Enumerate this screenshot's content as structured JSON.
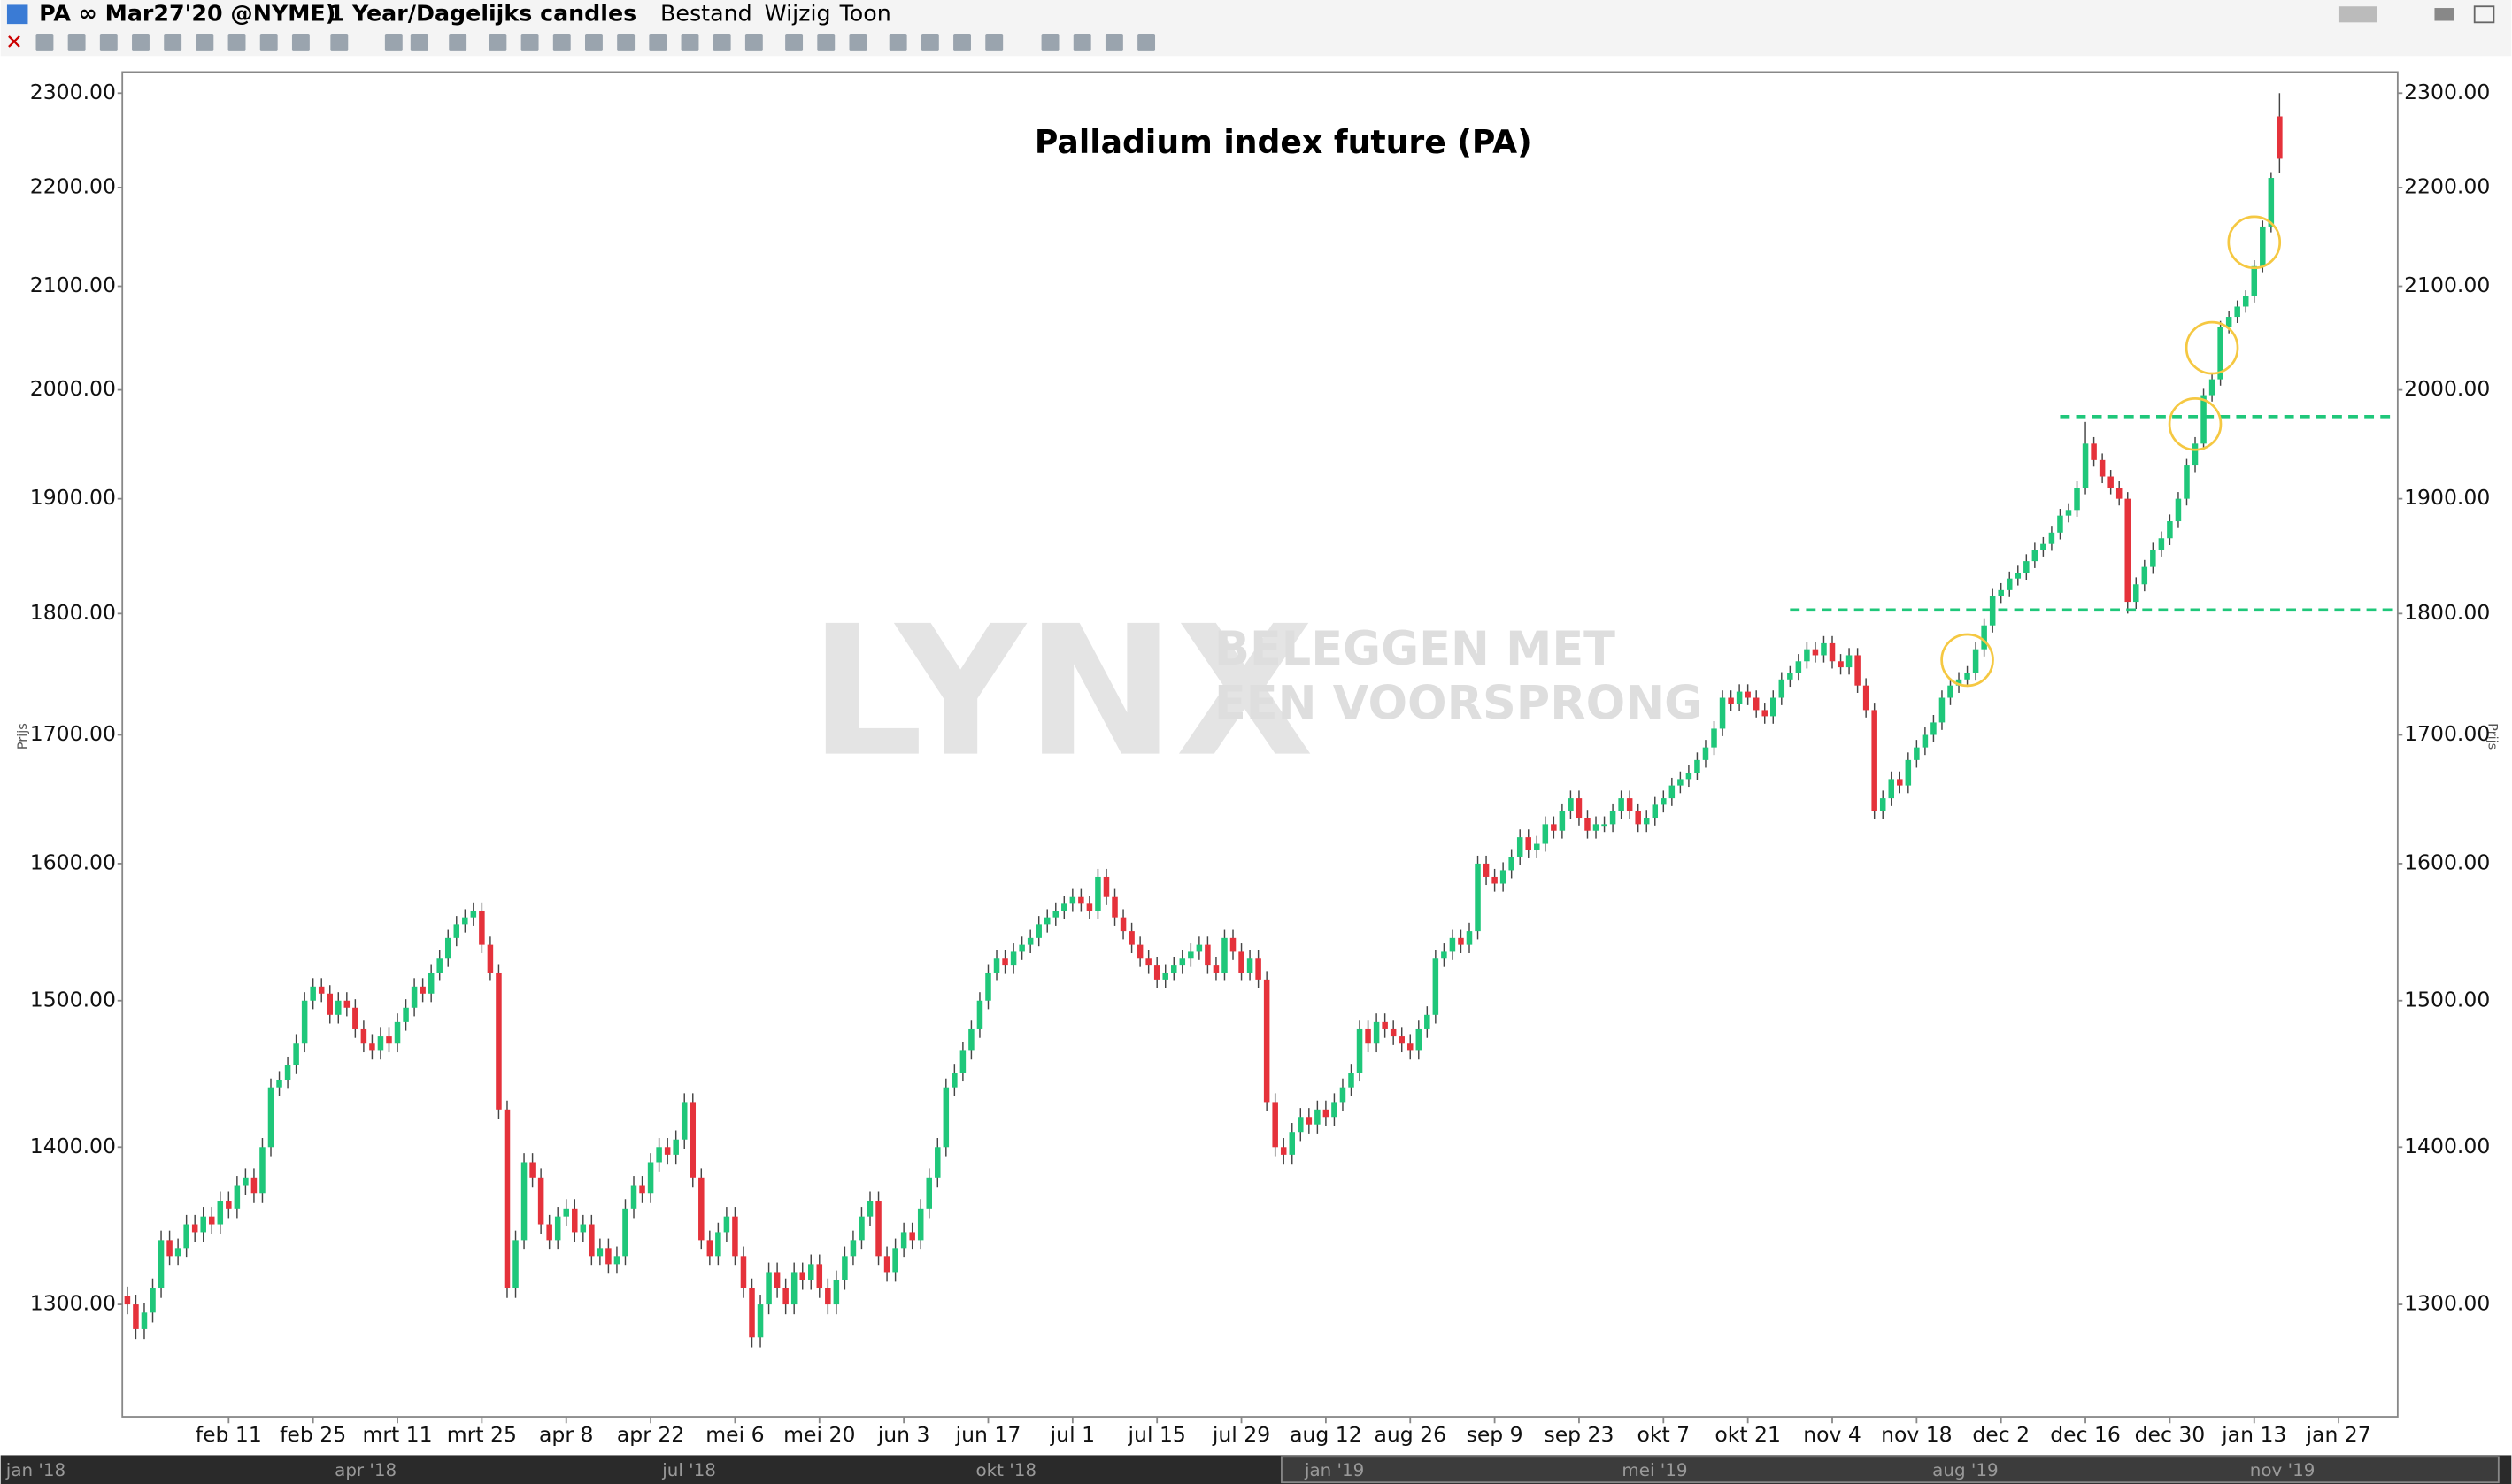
{
  "toolbar": {
    "symbol": "PA ∞ Mar27'20 @NYME)",
    "period": "1 Year/Dagelijks candles",
    "menu": [
      "Bestand",
      "Wijzig",
      "Toon"
    ]
  },
  "watermark": {
    "logo": "LYNX",
    "tagline": [
      "BELEGGEN MET",
      "EEN VOORSPRONG"
    ]
  },
  "navigator": {
    "labels": [
      "jan '18",
      "apr '18",
      "jul '18",
      "okt '18",
      "jan '19",
      "mei '19",
      "aug '19",
      "nov '19"
    ]
  },
  "chart_data": {
    "type": "candlestick",
    "title": "Palladium index future (PA)",
    "y_label": "Prijs",
    "log_scale": true,
    "grid": false,
    "up_color": "#1fc77a",
    "down_color": "#e5323b",
    "xlim": [
      -0.6,
      269
    ],
    "xticks": [
      {
        "value": 12,
        "label": "feb 11"
      },
      {
        "value": 22,
        "label": "feb 25"
      },
      {
        "value": 32,
        "label": "mrt 11"
      },
      {
        "value": 42,
        "label": "mrt 25"
      },
      {
        "value": 52,
        "label": "apr 8"
      },
      {
        "value": 62,
        "label": "apr 22"
      },
      {
        "value": 72,
        "label": "mei 6"
      },
      {
        "value": 82,
        "label": "mei 20"
      },
      {
        "value": 92,
        "label": "jun 3"
      },
      {
        "value": 102,
        "label": "jun 17"
      },
      {
        "value": 112,
        "label": "jul 1"
      },
      {
        "value": 122,
        "label": "jul 15"
      },
      {
        "value": 132,
        "label": "jul 29"
      },
      {
        "value": 142,
        "label": "aug 12"
      },
      {
        "value": 152,
        "label": "aug 26"
      },
      {
        "value": 162,
        "label": "sep 9"
      },
      {
        "value": 172,
        "label": "sep 23"
      },
      {
        "value": 182,
        "label": "okt 7"
      },
      {
        "value": 192,
        "label": "okt 21"
      },
      {
        "value": 202,
        "label": "nov 4"
      },
      {
        "value": 212,
        "label": "nov 18"
      },
      {
        "value": 222,
        "label": "dec 2"
      },
      {
        "value": 232,
        "label": "dec 16"
      },
      {
        "value": 242,
        "label": "dec 30"
      },
      {
        "value": 252,
        "label": "jan 13"
      },
      {
        "value": 262,
        "label": "jan 27"
      }
    ],
    "ylim": [
      1233,
      2323
    ],
    "yticks": [
      {
        "value": 1300,
        "label": "1300.00"
      },
      {
        "value": 1400,
        "label": "1400.00"
      },
      {
        "value": 1500,
        "label": "1500.00"
      },
      {
        "value": 1600,
        "label": "1600.00"
      },
      {
        "value": 1700,
        "label": "1700.00"
      },
      {
        "value": 1800,
        "label": "1800.00"
      },
      {
        "value": 1900,
        "label": "1900.00"
      },
      {
        "value": 2000,
        "label": "2000.00"
      },
      {
        "value": 2100,
        "label": "2100.00"
      },
      {
        "value": 2200,
        "label": "2200.00"
      },
      {
        "value": 2300,
        "label": "2300.00"
      }
    ],
    "open": [
      1305,
      1300,
      1285,
      1295,
      1310,
      1340,
      1330,
      1335,
      1350,
      1345,
      1355,
      1350,
      1365,
      1360,
      1375,
      1380,
      1370,
      1400,
      1440,
      1445,
      1455,
      1470,
      1500,
      1510,
      1505,
      1490,
      1500,
      1495,
      1480,
      1470,
      1465,
      1475,
      1470,
      1485,
      1495,
      1510,
      1505,
      1520,
      1530,
      1545,
      1555,
      1560,
      1565,
      1540,
      1520,
      1425,
      1310,
      1340,
      1390,
      1380,
      1350,
      1340,
      1355,
      1360,
      1345,
      1350,
      1330,
      1335,
      1325,
      1330,
      1360,
      1375,
      1370,
      1390,
      1400,
      1395,
      1405,
      1430,
      1380,
      1340,
      1330,
      1345,
      1355,
      1330,
      1310,
      1280,
      1300,
      1320,
      1310,
      1300,
      1320,
      1315,
      1325,
      1310,
      1300,
      1315,
      1330,
      1340,
      1355,
      1365,
      1330,
      1320,
      1335,
      1345,
      1340,
      1360,
      1380,
      1400,
      1440,
      1450,
      1465,
      1480,
      1500,
      1520,
      1530,
      1525,
      1535,
      1540,
      1545,
      1555,
      1560,
      1565,
      1570,
      1575,
      1570,
      1565,
      1590,
      1575,
      1560,
      1550,
      1540,
      1530,
      1525,
      1515,
      1520,
      1525,
      1530,
      1535,
      1540,
      1525,
      1520,
      1545,
      1535,
      1520,
      1530,
      1515,
      1430,
      1400,
      1395,
      1410,
      1420,
      1415,
      1425,
      1420,
      1430,
      1440,
      1450,
      1480,
      1470,
      1485,
      1480,
      1475,
      1470,
      1465,
      1480,
      1490,
      1530,
      1535,
      1545,
      1540,
      1550,
      1600,
      1590,
      1585,
      1595,
      1605,
      1620,
      1610,
      1615,
      1630,
      1625,
      1640,
      1650,
      1635,
      1625,
      1630,
      1630,
      1640,
      1650,
      1640,
      1630,
      1635,
      1645,
      1650,
      1660,
      1665,
      1670,
      1680,
      1690,
      1705,
      1730,
      1725,
      1735,
      1730,
      1720,
      1715,
      1730,
      1745,
      1750,
      1760,
      1770,
      1765,
      1775,
      1760,
      1755,
      1765,
      1740,
      1720,
      1640,
      1650,
      1665,
      1660,
      1680,
      1690,
      1700,
      1710,
      1730,
      1740,
      1745,
      1750,
      1770,
      1790,
      1815,
      1820,
      1830,
      1835,
      1845,
      1855,
      1860,
      1870,
      1885,
      1890,
      1910,
      1950,
      1935,
      1920,
      1910,
      1900,
      1810,
      1825,
      1840,
      1855,
      1865,
      1880,
      1900,
      1930,
      1950,
      1995,
      2010,
      2060,
      2070,
      2080,
      2090,
      2120,
      2160,
      2275
    ],
    "high": [
      1311,
      1306,
      1301,
      1316,
      1346,
      1346,
      1341,
      1356,
      1356,
      1361,
      1361,
      1371,
      1371,
      1381,
      1386,
      1386,
      1406,
      1446,
      1451,
      1461,
      1476,
      1506,
      1516,
      1516,
      1511,
      1506,
      1506,
      1501,
      1486,
      1476,
      1481,
      1481,
      1491,
      1501,
      1516,
      1516,
      1526,
      1536,
      1551,
      1561,
      1566,
      1571,
      1571,
      1546,
      1526,
      1431,
      1346,
      1396,
      1396,
      1386,
      1356,
      1361,
      1366,
      1366,
      1356,
      1356,
      1341,
      1341,
      1336,
      1366,
      1381,
      1381,
      1396,
      1406,
      1406,
      1411,
      1436,
      1436,
      1386,
      1346,
      1351,
      1361,
      1361,
      1336,
      1316,
      1306,
      1326,
      1326,
      1316,
      1326,
      1326,
      1331,
      1331,
      1316,
      1321,
      1336,
      1346,
      1361,
      1371,
      1371,
      1336,
      1341,
      1351,
      1351,
      1366,
      1386,
      1406,
      1446,
      1456,
      1471,
      1486,
      1506,
      1526,
      1536,
      1536,
      1541,
      1546,
      1551,
      1561,
      1566,
      1571,
      1576,
      1581,
      1581,
      1576,
      1596,
      1596,
      1581,
      1566,
      1556,
      1546,
      1536,
      1531,
      1526,
      1531,
      1536,
      1541,
      1546,
      1546,
      1531,
      1551,
      1551,
      1541,
      1536,
      1536,
      1521,
      1436,
      1406,
      1416,
      1426,
      1426,
      1431,
      1431,
      1436,
      1446,
      1456,
      1486,
      1486,
      1491,
      1491,
      1486,
      1481,
      1476,
      1486,
      1496,
      1536,
      1541,
      1551,
      1551,
      1556,
      1606,
      1606,
      1596,
      1601,
      1611,
      1626,
      1626,
      1621,
      1636,
      1636,
      1646,
      1656,
      1656,
      1641,
      1636,
      1636,
      1646,
      1656,
      1656,
      1646,
      1641,
      1651,
      1656,
      1666,
      1671,
      1676,
      1686,
      1696,
      1711,
      1736,
      1736,
      1741,
      1741,
      1736,
      1726,
      1736,
      1751,
      1756,
      1766,
      1776,
      1776,
      1781,
      1781,
      1766,
      1771,
      1771,
      1746,
      1726,
      1656,
      1671,
      1671,
      1686,
      1696,
      1706,
      1716,
      1736,
      1746,
      1751,
      1756,
      1776,
      1796,
      1821,
      1826,
      1836,
      1841,
      1851,
      1861,
      1866,
      1876,
      1891,
      1896,
      1916,
      1970,
      1956,
      1941,
      1926,
      1916,
      1906,
      1831,
      1846,
      1861,
      1871,
      1886,
      1906,
      1936,
      1956,
      2001,
      2016,
      2066,
      2076,
      2086,
      2096,
      2126,
      2166,
      2216,
      2300
    ],
    "low": [
      1294,
      1279,
      1279,
      1289,
      1304,
      1324,
      1324,
      1329,
      1339,
      1339,
      1344,
      1344,
      1354,
      1354,
      1369,
      1364,
      1364,
      1394,
      1434,
      1439,
      1449,
      1464,
      1494,
      1499,
      1484,
      1484,
      1489,
      1474,
      1464,
      1459,
      1459,
      1464,
      1464,
      1479,
      1489,
      1499,
      1499,
      1514,
      1524,
      1539,
      1549,
      1554,
      1534,
      1514,
      1419,
      1304,
      1304,
      1334,
      1374,
      1344,
      1334,
      1334,
      1349,
      1339,
      1339,
      1324,
      1324,
      1319,
      1319,
      1324,
      1354,
      1364,
      1364,
      1384,
      1389,
      1389,
      1399,
      1374,
      1334,
      1324,
      1324,
      1339,
      1324,
      1304,
      1274,
      1274,
      1294,
      1304,
      1294,
      1294,
      1309,
      1309,
      1304,
      1294,
      1294,
      1309,
      1324,
      1334,
      1349,
      1324,
      1314,
      1314,
      1329,
      1334,
      1334,
      1354,
      1374,
      1394,
      1434,
      1444,
      1459,
      1474,
      1494,
      1514,
      1519,
      1519,
      1529,
      1534,
      1539,
      1549,
      1554,
      1559,
      1564,
      1564,
      1559,
      1559,
      1569,
      1554,
      1544,
      1534,
      1524,
      1519,
      1509,
      1509,
      1514,
      1519,
      1524,
      1529,
      1519,
      1514,
      1514,
      1529,
      1514,
      1514,
      1509,
      1424,
      1394,
      1389,
      1389,
      1404,
      1409,
      1409,
      1414,
      1414,
      1424,
      1434,
      1444,
      1464,
      1464,
      1474,
      1469,
      1464,
      1459,
      1459,
      1474,
      1484,
      1524,
      1529,
      1534,
      1534,
      1544,
      1584,
      1579,
      1579,
      1589,
      1599,
      1604,
      1604,
      1609,
      1619,
      1619,
      1634,
      1629,
      1619,
      1619,
      1624,
      1624,
      1634,
      1634,
      1624,
      1624,
      1629,
      1639,
      1644,
      1654,
      1659,
      1664,
      1674,
      1684,
      1699,
      1719,
      1719,
      1724,
      1714,
      1709,
      1709,
      1724,
      1739,
      1744,
      1754,
      1759,
      1759,
      1754,
      1749,
      1749,
      1734,
      1714,
      1634,
      1634,
      1644,
      1654,
      1654,
      1674,
      1684,
      1694,
      1704,
      1724,
      1734,
      1739,
      1744,
      1764,
      1784,
      1809,
      1814,
      1824,
      1829,
      1839,
      1849,
      1854,
      1864,
      1879,
      1884,
      1904,
      1929,
      1914,
      1904,
      1894,
      1800,
      1804,
      1819,
      1834,
      1849,
      1859,
      1874,
      1894,
      1924,
      1944,
      1989,
      2004,
      2054,
      2064,
      2074,
      2084,
      2114,
      2154,
      2215
    ],
    "close": [
      1300,
      1285,
      1295,
      1310,
      1340,
      1330,
      1335,
      1350,
      1345,
      1355,
      1350,
      1365,
      1360,
      1375,
      1380,
      1370,
      1400,
      1440,
      1445,
      1455,
      1470,
      1500,
      1510,
      1505,
      1490,
      1500,
      1495,
      1480,
      1470,
      1465,
      1475,
      1470,
      1485,
      1495,
      1510,
      1505,
      1520,
      1530,
      1545,
      1555,
      1560,
      1565,
      1540,
      1520,
      1425,
      1310,
      1340,
      1390,
      1380,
      1350,
      1340,
      1355,
      1360,
      1345,
      1350,
      1330,
      1335,
      1325,
      1330,
      1360,
      1375,
      1370,
      1390,
      1400,
      1395,
      1405,
      1430,
      1380,
      1340,
      1330,
      1345,
      1355,
      1330,
      1310,
      1280,
      1300,
      1320,
      1310,
      1300,
      1320,
      1315,
      1325,
      1310,
      1300,
      1315,
      1330,
      1340,
      1355,
      1365,
      1330,
      1320,
      1335,
      1345,
      1340,
      1360,
      1380,
      1400,
      1440,
      1450,
      1465,
      1480,
      1500,
      1520,
      1530,
      1525,
      1535,
      1540,
      1545,
      1555,
      1560,
      1565,
      1570,
      1575,
      1570,
      1565,
      1590,
      1575,
      1560,
      1550,
      1540,
      1530,
      1525,
      1515,
      1520,
      1525,
      1530,
      1535,
      1540,
      1525,
      1520,
      1545,
      1535,
      1520,
      1530,
      1515,
      1430,
      1400,
      1395,
      1410,
      1420,
      1415,
      1425,
      1420,
      1430,
      1440,
      1450,
      1480,
      1470,
      1485,
      1480,
      1475,
      1470,
      1465,
      1480,
      1490,
      1530,
      1535,
      1545,
      1540,
      1550,
      1600,
      1590,
      1585,
      1595,
      1605,
      1620,
      1610,
      1615,
      1630,
      1625,
      1640,
      1650,
      1635,
      1625,
      1630,
      1630,
      1640,
      1650,
      1640,
      1630,
      1635,
      1645,
      1650,
      1660,
      1665,
      1670,
      1680,
      1690,
      1705,
      1730,
      1725,
      1735,
      1730,
      1720,
      1715,
      1730,
      1745,
      1750,
      1760,
      1770,
      1765,
      1775,
      1760,
      1755,
      1765,
      1740,
      1720,
      1640,
      1650,
      1665,
      1660,
      1680,
      1690,
      1700,
      1710,
      1730,
      1740,
      1745,
      1750,
      1770,
      1790,
      1815,
      1820,
      1830,
      1835,
      1845,
      1855,
      1860,
      1870,
      1885,
      1890,
      1910,
      1950,
      1935,
      1920,
      1910,
      1900,
      1810,
      1825,
      1840,
      1855,
      1865,
      1880,
      1900,
      1930,
      1950,
      1995,
      2010,
      2060,
      2070,
      2080,
      2090,
      2120,
      2160,
      2210,
      2230
    ],
    "levels": [
      {
        "value": 1975,
        "from": 229,
        "color": "#1fc77a"
      },
      {
        "value": 1803,
        "from": 197,
        "color": "#1fc77a"
      }
    ],
    "highlights": [
      {
        "x": 218,
        "y": 1761,
        "color": "#f5c842"
      },
      {
        "x": 245,
        "y": 1968,
        "color": "#f5c842"
      },
      {
        "x": 247,
        "y": 2040,
        "color": "#f5c842"
      },
      {
        "x": 252,
        "y": 2144,
        "color": "#f5c842"
      }
    ]
  }
}
